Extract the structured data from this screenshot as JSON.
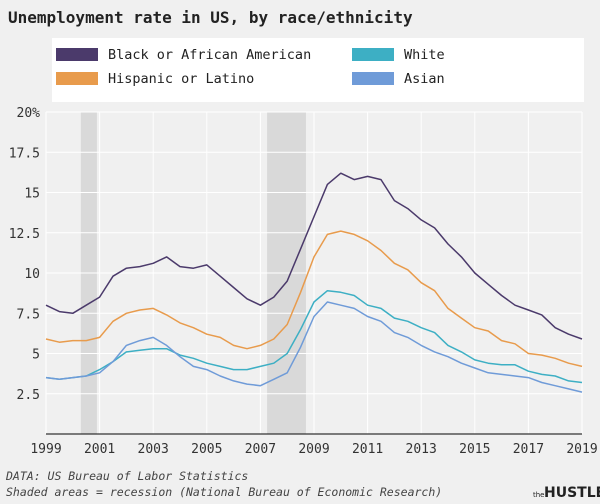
{
  "chart_data": {
    "type": "line",
    "title": "Unemployment rate in US, by race/ethnicity",
    "legend_position": "top",
    "x_range": [
      1999,
      2019
    ],
    "ylim": [
      0,
      20
    ],
    "x_ticks": [
      "1999",
      "2001",
      "2003",
      "2005",
      "2007",
      "2009",
      "2011",
      "2013",
      "2015",
      "2017",
      "2019"
    ],
    "y_ticks": [
      "2.5",
      "5",
      "7.5",
      "10",
      "12.5",
      "15",
      "17.5",
      "20%"
    ],
    "y_tick_values": [
      2.5,
      5,
      7.5,
      10,
      12.5,
      15,
      17.5,
      20
    ],
    "grid": true,
    "recessions": [
      [
        2000.3,
        2000.9
      ],
      [
        2007.25,
        2008.7
      ]
    ],
    "series": [
      {
        "name": "Black or African American",
        "color": "#4b3a6b",
        "x": [
          1999.0,
          1999.5,
          2000.0,
          2000.5,
          2001.0,
          2001.5,
          2002.0,
          2002.5,
          2003.0,
          2003.5,
          2004.0,
          2004.5,
          2005.0,
          2005.5,
          2006.0,
          2006.5,
          2007.0,
          2007.5,
          2008.0,
          2008.5,
          2009.0,
          2009.5,
          2010.0,
          2010.5,
          2011.0,
          2011.5,
          2012.0,
          2012.5,
          2013.0,
          2013.5,
          2014.0,
          2014.5,
          2015.0,
          2015.5,
          2016.0,
          2016.5,
          2017.0,
          2017.5,
          2018.0,
          2018.5,
          2019.0
        ],
        "y": [
          8.0,
          7.6,
          7.5,
          8.0,
          8.5,
          9.8,
          10.3,
          10.4,
          10.6,
          11.0,
          10.4,
          10.3,
          10.5,
          9.8,
          9.1,
          8.4,
          8.0,
          8.5,
          9.5,
          11.5,
          13.5,
          15.5,
          16.2,
          15.8,
          16.0,
          15.8,
          14.5,
          14.0,
          13.3,
          12.8,
          11.8,
          11.0,
          10.0,
          9.3,
          8.6,
          8.0,
          7.7,
          7.4,
          6.6,
          6.2,
          5.9
        ]
      },
      {
        "name": "Hispanic or Latino",
        "color": "#e89b4c",
        "x": [
          1999.0,
          1999.5,
          2000.0,
          2000.5,
          2001.0,
          2001.5,
          2002.0,
          2002.5,
          2003.0,
          2003.5,
          2004.0,
          2004.5,
          2005.0,
          2005.5,
          2006.0,
          2006.5,
          2007.0,
          2007.5,
          2008.0,
          2008.5,
          2009.0,
          2009.5,
          2010.0,
          2010.5,
          2011.0,
          2011.5,
          2012.0,
          2012.5,
          2013.0,
          2013.5,
          2014.0,
          2014.5,
          2015.0,
          2015.5,
          2016.0,
          2016.5,
          2017.0,
          2017.5,
          2018.0,
          2018.5,
          2019.0
        ],
        "y": [
          5.9,
          5.7,
          5.8,
          5.8,
          6.0,
          7.0,
          7.5,
          7.7,
          7.8,
          7.4,
          6.9,
          6.6,
          6.2,
          6.0,
          5.5,
          5.3,
          5.5,
          5.9,
          6.8,
          8.8,
          11.0,
          12.4,
          12.6,
          12.4,
          12.0,
          11.4,
          10.6,
          10.2,
          9.4,
          8.9,
          7.8,
          7.2,
          6.6,
          6.4,
          5.8,
          5.6,
          5.0,
          4.9,
          4.7,
          4.4,
          4.2
        ]
      },
      {
        "name": "White",
        "color": "#3dafc4",
        "x": [
          1999.0,
          1999.5,
          2000.0,
          2000.5,
          2001.0,
          2001.5,
          2002.0,
          2002.5,
          2003.0,
          2003.5,
          2004.0,
          2004.5,
          2005.0,
          2005.5,
          2006.0,
          2006.5,
          2007.0,
          2007.5,
          2008.0,
          2008.5,
          2009.0,
          2009.5,
          2010.0,
          2010.5,
          2011.0,
          2011.5,
          2012.0,
          2012.5,
          2013.0,
          2013.5,
          2014.0,
          2014.5,
          2015.0,
          2015.5,
          2016.0,
          2016.5,
          2017.0,
          2017.5,
          2018.0,
          2018.5,
          2019.0
        ],
        "y": [
          3.5,
          3.4,
          3.5,
          3.6,
          4.0,
          4.5,
          5.1,
          5.2,
          5.3,
          5.3,
          4.9,
          4.7,
          4.4,
          4.2,
          4.0,
          4.0,
          4.2,
          4.4,
          5.0,
          6.5,
          8.2,
          8.9,
          8.8,
          8.6,
          8.0,
          7.8,
          7.2,
          7.0,
          6.6,
          6.3,
          5.5,
          5.1,
          4.6,
          4.4,
          4.3,
          4.3,
          3.9,
          3.7,
          3.6,
          3.3,
          3.2
        ]
      },
      {
        "name": "Asian",
        "color": "#6f9bd8",
        "x": [
          1999.0,
          1999.5,
          2000.0,
          2000.5,
          2001.0,
          2001.5,
          2002.0,
          2002.5,
          2003.0,
          2003.5,
          2004.0,
          2004.5,
          2005.0,
          2005.5,
          2006.0,
          2006.5,
          2007.0,
          2007.5,
          2008.0,
          2008.5,
          2009.0,
          2009.5,
          2010.0,
          2010.5,
          2011.0,
          2011.5,
          2012.0,
          2012.5,
          2013.0,
          2013.5,
          2014.0,
          2014.5,
          2015.0,
          2015.5,
          2016.0,
          2016.5,
          2017.0,
          2017.5,
          2018.0,
          2018.5,
          2019.0
        ],
        "y": [
          3.5,
          3.4,
          3.5,
          3.6,
          3.8,
          4.5,
          5.5,
          5.8,
          6.0,
          5.5,
          4.8,
          4.2,
          4.0,
          3.6,
          3.3,
          3.1,
          3.0,
          3.4,
          3.8,
          5.4,
          7.3,
          8.2,
          8.0,
          7.8,
          7.3,
          7.0,
          6.3,
          6.0,
          5.5,
          5.1,
          4.8,
          4.4,
          4.1,
          3.8,
          3.7,
          3.6,
          3.5,
          3.2,
          3.0,
          2.8,
          2.6
        ]
      }
    ]
  },
  "footer": {
    "source": "DATA: US Bureau of Labor Statistics",
    "note": "Shaded areas = recession (National Bureau of Economic Research)",
    "brand_small": "the",
    "brand_big": "HUSTLE"
  }
}
